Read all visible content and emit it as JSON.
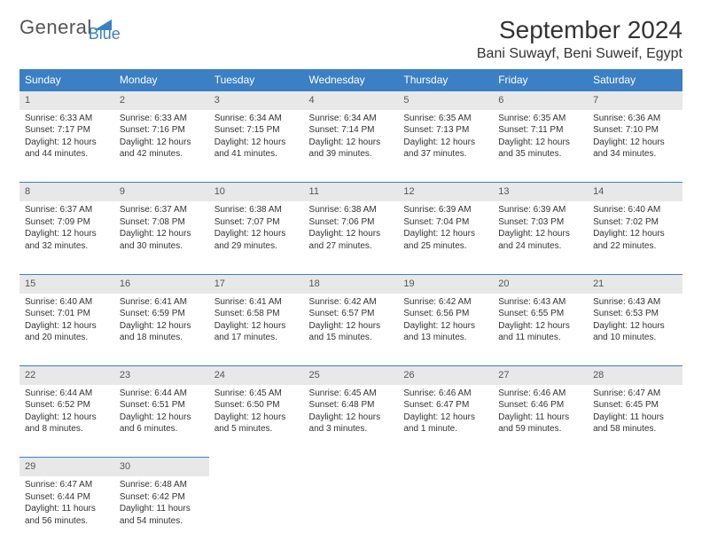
{
  "logo": {
    "text1": "General",
    "text2": "Blue",
    "shape_color": "#3b7fc4",
    "text1_color": "#555555",
    "text2_color": "#3b7fc4"
  },
  "title": "September 2024",
  "location": "Bani Suwayf, Beni Suweif, Egypt",
  "colors": {
    "header_bg": "#3b7fc4",
    "header_text": "#ffffff",
    "daynum_bg": "#e8e8e8",
    "border": "#3b7fc4",
    "text": "#333333"
  },
  "weekdays": [
    "Sunday",
    "Monday",
    "Tuesday",
    "Wednesday",
    "Thursday",
    "Friday",
    "Saturday"
  ],
  "weeks": [
    [
      {
        "day": "1",
        "sunrise": "Sunrise: 6:33 AM",
        "sunset": "Sunset: 7:17 PM",
        "daylight1": "Daylight: 12 hours",
        "daylight2": "and 44 minutes."
      },
      {
        "day": "2",
        "sunrise": "Sunrise: 6:33 AM",
        "sunset": "Sunset: 7:16 PM",
        "daylight1": "Daylight: 12 hours",
        "daylight2": "and 42 minutes."
      },
      {
        "day": "3",
        "sunrise": "Sunrise: 6:34 AM",
        "sunset": "Sunset: 7:15 PM",
        "daylight1": "Daylight: 12 hours",
        "daylight2": "and 41 minutes."
      },
      {
        "day": "4",
        "sunrise": "Sunrise: 6:34 AM",
        "sunset": "Sunset: 7:14 PM",
        "daylight1": "Daylight: 12 hours",
        "daylight2": "and 39 minutes."
      },
      {
        "day": "5",
        "sunrise": "Sunrise: 6:35 AM",
        "sunset": "Sunset: 7:13 PM",
        "daylight1": "Daylight: 12 hours",
        "daylight2": "and 37 minutes."
      },
      {
        "day": "6",
        "sunrise": "Sunrise: 6:35 AM",
        "sunset": "Sunset: 7:11 PM",
        "daylight1": "Daylight: 12 hours",
        "daylight2": "and 35 minutes."
      },
      {
        "day": "7",
        "sunrise": "Sunrise: 6:36 AM",
        "sunset": "Sunset: 7:10 PM",
        "daylight1": "Daylight: 12 hours",
        "daylight2": "and 34 minutes."
      }
    ],
    [
      {
        "day": "8",
        "sunrise": "Sunrise: 6:37 AM",
        "sunset": "Sunset: 7:09 PM",
        "daylight1": "Daylight: 12 hours",
        "daylight2": "and 32 minutes."
      },
      {
        "day": "9",
        "sunrise": "Sunrise: 6:37 AM",
        "sunset": "Sunset: 7:08 PM",
        "daylight1": "Daylight: 12 hours",
        "daylight2": "and 30 minutes."
      },
      {
        "day": "10",
        "sunrise": "Sunrise: 6:38 AM",
        "sunset": "Sunset: 7:07 PM",
        "daylight1": "Daylight: 12 hours",
        "daylight2": "and 29 minutes."
      },
      {
        "day": "11",
        "sunrise": "Sunrise: 6:38 AM",
        "sunset": "Sunset: 7:06 PM",
        "daylight1": "Daylight: 12 hours",
        "daylight2": "and 27 minutes."
      },
      {
        "day": "12",
        "sunrise": "Sunrise: 6:39 AM",
        "sunset": "Sunset: 7:04 PM",
        "daylight1": "Daylight: 12 hours",
        "daylight2": "and 25 minutes."
      },
      {
        "day": "13",
        "sunrise": "Sunrise: 6:39 AM",
        "sunset": "Sunset: 7:03 PM",
        "daylight1": "Daylight: 12 hours",
        "daylight2": "and 24 minutes."
      },
      {
        "day": "14",
        "sunrise": "Sunrise: 6:40 AM",
        "sunset": "Sunset: 7:02 PM",
        "daylight1": "Daylight: 12 hours",
        "daylight2": "and 22 minutes."
      }
    ],
    [
      {
        "day": "15",
        "sunrise": "Sunrise: 6:40 AM",
        "sunset": "Sunset: 7:01 PM",
        "daylight1": "Daylight: 12 hours",
        "daylight2": "and 20 minutes."
      },
      {
        "day": "16",
        "sunrise": "Sunrise: 6:41 AM",
        "sunset": "Sunset: 6:59 PM",
        "daylight1": "Daylight: 12 hours",
        "daylight2": "and 18 minutes."
      },
      {
        "day": "17",
        "sunrise": "Sunrise: 6:41 AM",
        "sunset": "Sunset: 6:58 PM",
        "daylight1": "Daylight: 12 hours",
        "daylight2": "and 17 minutes."
      },
      {
        "day": "18",
        "sunrise": "Sunrise: 6:42 AM",
        "sunset": "Sunset: 6:57 PM",
        "daylight1": "Daylight: 12 hours",
        "daylight2": "and 15 minutes."
      },
      {
        "day": "19",
        "sunrise": "Sunrise: 6:42 AM",
        "sunset": "Sunset: 6:56 PM",
        "daylight1": "Daylight: 12 hours",
        "daylight2": "and 13 minutes."
      },
      {
        "day": "20",
        "sunrise": "Sunrise: 6:43 AM",
        "sunset": "Sunset: 6:55 PM",
        "daylight1": "Daylight: 12 hours",
        "daylight2": "and 11 minutes."
      },
      {
        "day": "21",
        "sunrise": "Sunrise: 6:43 AM",
        "sunset": "Sunset: 6:53 PM",
        "daylight1": "Daylight: 12 hours",
        "daylight2": "and 10 minutes."
      }
    ],
    [
      {
        "day": "22",
        "sunrise": "Sunrise: 6:44 AM",
        "sunset": "Sunset: 6:52 PM",
        "daylight1": "Daylight: 12 hours",
        "daylight2": "and 8 minutes."
      },
      {
        "day": "23",
        "sunrise": "Sunrise: 6:44 AM",
        "sunset": "Sunset: 6:51 PM",
        "daylight1": "Daylight: 12 hours",
        "daylight2": "and 6 minutes."
      },
      {
        "day": "24",
        "sunrise": "Sunrise: 6:45 AM",
        "sunset": "Sunset: 6:50 PM",
        "daylight1": "Daylight: 12 hours",
        "daylight2": "and 5 minutes."
      },
      {
        "day": "25",
        "sunrise": "Sunrise: 6:45 AM",
        "sunset": "Sunset: 6:48 PM",
        "daylight1": "Daylight: 12 hours",
        "daylight2": "and 3 minutes."
      },
      {
        "day": "26",
        "sunrise": "Sunrise: 6:46 AM",
        "sunset": "Sunset: 6:47 PM",
        "daylight1": "Daylight: 12 hours",
        "daylight2": "and 1 minute."
      },
      {
        "day": "27",
        "sunrise": "Sunrise: 6:46 AM",
        "sunset": "Sunset: 6:46 PM",
        "daylight1": "Daylight: 11 hours",
        "daylight2": "and 59 minutes."
      },
      {
        "day": "28",
        "sunrise": "Sunrise: 6:47 AM",
        "sunset": "Sunset: 6:45 PM",
        "daylight1": "Daylight: 11 hours",
        "daylight2": "and 58 minutes."
      }
    ],
    [
      {
        "day": "29",
        "sunrise": "Sunrise: 6:47 AM",
        "sunset": "Sunset: 6:44 PM",
        "daylight1": "Daylight: 11 hours",
        "daylight2": "and 56 minutes."
      },
      {
        "day": "30",
        "sunrise": "Sunrise: 6:48 AM",
        "sunset": "Sunset: 6:42 PM",
        "daylight1": "Daylight: 11 hours",
        "daylight2": "and 54 minutes."
      },
      null,
      null,
      null,
      null,
      null
    ]
  ]
}
